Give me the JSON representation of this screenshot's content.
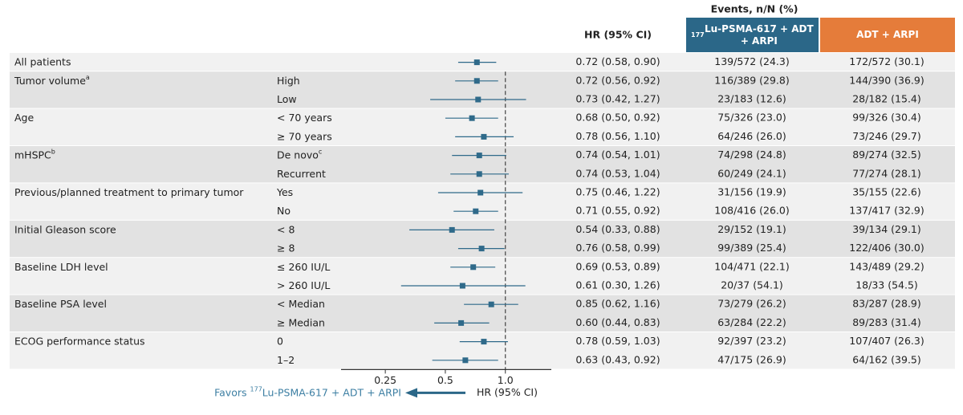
{
  "chart_data": {
    "type": "forest",
    "events_header": "Events, n/N (%)",
    "hr_header": "HR (95% CI)",
    "arms": [
      {
        "sup": "177",
        "name": "Lu-PSMA-617 + ADT + ARPI",
        "color": "#2b6788"
      },
      {
        "name": "ADT + ARPI",
        "color": "#e57c3a"
      }
    ],
    "marker_color": "#2f6a8a",
    "x_log": true,
    "xlim": [
      0.15,
      1.7
    ],
    "xticks": [
      0.25,
      0.5,
      {
        "value": 1,
        "label": "1.0"
      }
    ],
    "reference": 1,
    "xlabel": "HR (95% CI)",
    "favors": {
      "prefix": "Favors",
      "sup": "177",
      "text": "Lu-PSMA-617 + ADT + ARPI"
    },
    "groups": [
      {
        "name": "All patients",
        "rows": [
          {
            "hr": 0.72,
            "lo": 0.58,
            "hi": 0.9,
            "hr_label": "0.72 (0.58, 0.90)",
            "arm1": "139/572 (24.3)",
            "arm2": "172/572 (30.1)"
          }
        ]
      },
      {
        "name": "Tumor volume",
        "sup": "a",
        "rows": [
          {
            "label": "High",
            "hr": 0.72,
            "lo": 0.56,
            "hi": 0.92,
            "hr_label": "0.72 (0.56, 0.92)",
            "arm1": "116/389 (29.8)",
            "arm2": "144/390 (36.9)"
          },
          {
            "label": "Low",
            "hr": 0.73,
            "lo": 0.42,
            "hi": 1.27,
            "hr_label": "0.73 (0.42, 1.27)",
            "arm1": "23/183 (12.6)",
            "arm2": "28/182 (15.4)"
          }
        ]
      },
      {
        "name": "Age",
        "rows": [
          {
            "label": "< 70 years",
            "hr": 0.68,
            "lo": 0.5,
            "hi": 0.92,
            "hr_label": "0.68 (0.50, 0.92)",
            "arm1": "75/326 (23.0)",
            "arm2": "99/326 (30.4)"
          },
          {
            "label": "≥ 70 years",
            "hr": 0.78,
            "lo": 0.56,
            "hi": 1.1,
            "hr_label": "0.78 (0.56, 1.10)",
            "arm1": "64/246 (26.0)",
            "arm2": "73/246 (29.7)"
          }
        ]
      },
      {
        "name": "mHSPC",
        "sup": "b",
        "rows": [
          {
            "label": "De novo",
            "sup": "c",
            "hr": 0.74,
            "lo": 0.54,
            "hi": 1.01,
            "hr_label": "0.74 (0.54, 1.01)",
            "arm1": "74/298 (24.8)",
            "arm2": "89/274 (32.5)"
          },
          {
            "label": "Recurrent",
            "hr": 0.74,
            "lo": 0.53,
            "hi": 1.04,
            "hr_label": "0.74 (0.53, 1.04)",
            "arm1": "60/249 (24.1)",
            "arm2": "77/274 (28.1)"
          }
        ]
      },
      {
        "name": "Previous/planned treatment to primary tumor",
        "rows": [
          {
            "label": "Yes",
            "hr": 0.75,
            "lo": 0.46,
            "hi": 1.22,
            "hr_label": "0.75 (0.46, 1.22)",
            "arm1": "31/156 (19.9)",
            "arm2": "35/155 (22.6)"
          },
          {
            "label": "No",
            "hr": 0.71,
            "lo": 0.55,
            "hi": 0.92,
            "hr_label": "0.71 (0.55, 0.92)",
            "arm1": "108/416 (26.0)",
            "arm2": "137/417 (32.9)"
          }
        ]
      },
      {
        "name": "Initial Gleason score",
        "rows": [
          {
            "label": "< 8",
            "hr": 0.54,
            "lo": 0.33,
            "hi": 0.88,
            "hr_label": "0.54 (0.33, 0.88)",
            "arm1": "29/152 (19.1)",
            "arm2": "39/134 (29.1)"
          },
          {
            "label": "≥ 8",
            "hr": 0.76,
            "lo": 0.58,
            "hi": 0.99,
            "hr_label": "0.76 (0.58, 0.99)",
            "arm1": "99/389 (25.4)",
            "arm2": "122/406 (30.0)"
          }
        ]
      },
      {
        "name": "Baseline LDH level",
        "rows": [
          {
            "label": "≤ 260 IU/L",
            "hr": 0.69,
            "lo": 0.53,
            "hi": 0.89,
            "hr_label": "0.69 (0.53, 0.89)",
            "arm1": "104/471 (22.1)",
            "arm2": "143/489 (29.2)"
          },
          {
            "label": "> 260 IU/L",
            "hr": 0.61,
            "lo": 0.3,
            "hi": 1.26,
            "hr_label": "0.61 (0.30, 1.26)",
            "arm1": "20/37 (54.1)",
            "arm2": "18/33 (54.5)"
          }
        ]
      },
      {
        "name": "Baseline PSA level",
        "rows": [
          {
            "label": "< Median",
            "hr": 0.85,
            "lo": 0.62,
            "hi": 1.16,
            "hr_label": "0.85 (0.62, 1.16)",
            "arm1": "73/279 (26.2)",
            "arm2": "83/287 (28.9)"
          },
          {
            "label": "≥ Median",
            "hr": 0.6,
            "lo": 0.44,
            "hi": 0.83,
            "hr_label": "0.60 (0.44, 0.83)",
            "arm1": "63/284 (22.2)",
            "arm2": "89/283 (31.4)"
          }
        ]
      },
      {
        "name": "ECOG performance status",
        "rows": [
          {
            "label": "0",
            "hr": 0.78,
            "lo": 0.59,
            "hi": 1.03,
            "hr_label": "0.78 (0.59, 1.03)",
            "arm1": "92/397 (23.2)",
            "arm2": "107/407 (26.3)"
          },
          {
            "label": "1–2",
            "hr": 0.63,
            "lo": 0.43,
            "hi": 0.92,
            "hr_label": "0.63 (0.43, 0.92)",
            "arm1": "47/175 (26.9)",
            "arm2": "64/162 (39.5)"
          }
        ]
      }
    ]
  }
}
